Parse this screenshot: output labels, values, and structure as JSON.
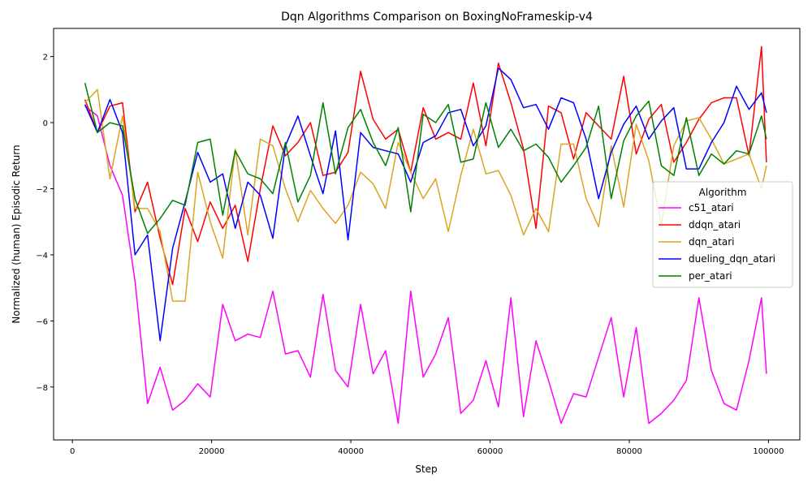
{
  "chart_data": {
    "type": "line",
    "title": "Dqn Algorithms Comparison on BoxingNoFrameskip-v4",
    "xlabel": "Step",
    "ylabel": "Normalized (human) Episodic Return",
    "xlim": [
      -2700,
      104500
    ],
    "ylim": [
      -9.6,
      2.85
    ],
    "xticks": [
      0,
      20000,
      40000,
      60000,
      80000,
      100000
    ],
    "yticks": [
      -8,
      -6,
      -4,
      -2,
      0,
      2
    ],
    "grid": false,
    "legend_title": "Algorithm",
    "legend_position": "right",
    "x": [
      1800,
      3600,
      5400,
      7200,
      9000,
      10800,
      12600,
      14400,
      16200,
      18000,
      19800,
      21600,
      23400,
      25200,
      27000,
      28800,
      30600,
      32400,
      34200,
      36000,
      37800,
      39600,
      41400,
      43200,
      45000,
      46800,
      48600,
      50400,
      52200,
      54000,
      55800,
      57600,
      59400,
      61200,
      63000,
      64800,
      66600,
      68400,
      70200,
      72000,
      73800,
      75600,
      77400,
      79200,
      81000,
      82800,
      84600,
      86400,
      88200,
      90000,
      91800,
      93600,
      95400,
      97200,
      99000,
      99700
    ],
    "series": [
      {
        "name": "c51_atari",
        "color": "#ff00ff",
        "values": [
          0.5,
          0.2,
          -1.3,
          -2.2,
          -4.8,
          -8.5,
          -7.4,
          -8.7,
          -8.4,
          -7.9,
          -8.3,
          -5.5,
          -6.6,
          -6.4,
          -6.5,
          -5.1,
          -7.0,
          -6.9,
          -7.7,
          -5.2,
          -7.5,
          -8.0,
          -5.5,
          -7.6,
          -6.9,
          -9.1,
          -5.1,
          -7.7,
          -7.0,
          -5.9,
          -8.8,
          -8.4,
          -7.2,
          -8.6,
          -5.3,
          -8.9,
          -6.6,
          -7.8,
          -9.1,
          -8.2,
          -8.3,
          -7.1,
          -5.9,
          -8.3,
          -6.2,
          -9.1,
          -8.8,
          -8.4,
          -7.8,
          -5.3,
          -7.5,
          -8.5,
          -8.7,
          -7.2,
          -5.3,
          -7.6
        ]
      },
      {
        "name": "ddqn_atari",
        "color": "#ff0000",
        "values": [
          0.7,
          -0.3,
          0.5,
          0.6,
          -2.7,
          -1.8,
          -3.5,
          -4.9,
          -2.6,
          -3.6,
          -2.4,
          -3.2,
          -2.5,
          -4.2,
          -2.0,
          -0.1,
          -1.0,
          -0.6,
          0.0,
          -1.6,
          -1.5,
          -0.9,
          1.55,
          0.1,
          -0.5,
          -0.2,
          -1.5,
          0.45,
          -0.5,
          -0.3,
          -0.5,
          1.2,
          -0.7,
          1.8,
          0.6,
          -0.8,
          -3.2,
          0.5,
          0.3,
          -1.1,
          0.3,
          -0.1,
          -0.5,
          1.4,
          -0.95,
          0.1,
          0.55,
          -1.2,
          -0.6,
          0.1,
          0.6,
          0.75,
          0.75,
          -1.0,
          2.3,
          -1.2
        ]
      },
      {
        "name": "dqn_atari",
        "color": "#daa520",
        "values": [
          0.6,
          1.0,
          -1.7,
          0.2,
          -2.6,
          -2.6,
          -3.3,
          -5.4,
          -5.4,
          -1.5,
          -3.0,
          -4.1,
          -0.8,
          -3.4,
          -0.5,
          -0.7,
          -2.0,
          -3.0,
          -2.05,
          -2.6,
          -3.05,
          -2.5,
          -1.5,
          -1.85,
          -2.6,
          -0.6,
          -1.5,
          -2.3,
          -1.7,
          -3.3,
          -1.6,
          -0.2,
          -1.55,
          -1.45,
          -2.2,
          -3.4,
          -2.6,
          -3.3,
          -0.65,
          -0.65,
          -2.3,
          -3.15,
          -0.7,
          -2.55,
          -0.05,
          -1.15,
          -3.1,
          -0.7,
          0.05,
          0.15,
          -0.5,
          -1.25,
          -1.1,
          -0.95,
          -2.0,
          -1.3
        ]
      },
      {
        "name": "dueling_dqn_atari",
        "color": "#0000ff",
        "values": [
          0.55,
          -0.3,
          0.7,
          -0.3,
          -4.0,
          -3.4,
          -6.6,
          -3.8,
          -2.4,
          -0.9,
          -1.8,
          -1.55,
          -3.2,
          -1.8,
          -2.2,
          -3.5,
          -0.7,
          0.2,
          -1.0,
          -2.15,
          -0.25,
          -3.55,
          -0.3,
          -0.75,
          -0.85,
          -0.95,
          -1.8,
          -0.6,
          -0.4,
          0.3,
          0.4,
          -0.7,
          -0.1,
          1.65,
          1.3,
          0.45,
          0.55,
          -0.2,
          0.75,
          0.6,
          -0.5,
          -2.3,
          -0.9,
          -0.05,
          0.5,
          -0.5,
          0.05,
          0.45,
          -1.4,
          -1.4,
          -0.6,
          0.0,
          1.1,
          0.4,
          0.9,
          0.3
        ]
      },
      {
        "name": "per_atari",
        "color": "#008000",
        "values": [
          1.2,
          -0.3,
          0.0,
          -0.1,
          -2.3,
          -3.35,
          -2.9,
          -2.35,
          -2.5,
          -0.6,
          -0.5,
          -2.8,
          -0.85,
          -1.55,
          -1.7,
          -2.15,
          -0.6,
          -2.4,
          -1.6,
          0.6,
          -1.55,
          -0.15,
          0.4,
          -0.6,
          -1.3,
          -0.15,
          -2.7,
          0.25,
          0.0,
          0.55,
          -1.2,
          -1.1,
          0.6,
          -0.75,
          -0.2,
          -0.85,
          -0.65,
          -1.05,
          -1.8,
          -1.3,
          -0.75,
          0.5,
          -2.3,
          -0.55,
          0.2,
          0.65,
          -1.3,
          -1.6,
          0.15,
          -1.6,
          -0.95,
          -1.25,
          -0.85,
          -0.95,
          0.2,
          -0.5
        ]
      }
    ]
  }
}
